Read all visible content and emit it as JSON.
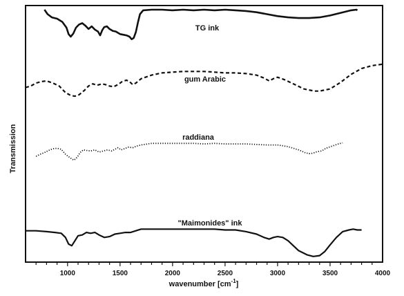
{
  "chart_data": {
    "type": "line",
    "xlabel": "wavenumber [cm",
    "xlabel_sup": "-1",
    "xlabel_close": "]",
    "ylabel": "Transmission",
    "xlim": [
      600,
      4000
    ],
    "x_ticks": [
      1000,
      1500,
      2000,
      2500,
      3000,
      3500,
      4000
    ],
    "x_tick_labels": [
      "1000",
      "1500",
      "2000",
      "2500",
      "3000",
      "3500",
      "4000"
    ],
    "x_reversed": false,
    "y_ticks_shown": false,
    "grid": false,
    "legend": "none (series labelled inline)",
    "series": [
      {
        "name": "TG ink",
        "style": "solid-thick",
        "offset_rank": 1,
        "points": [
          [
            780,
            1.0
          ],
          [
            810,
            0.93
          ],
          [
            850,
            0.88
          ],
          [
            900,
            0.86
          ],
          [
            950,
            0.81
          ],
          [
            990,
            0.72
          ],
          [
            1010,
            0.62
          ],
          [
            1030,
            0.58
          ],
          [
            1055,
            0.63
          ],
          [
            1080,
            0.72
          ],
          [
            1110,
            0.77
          ],
          [
            1140,
            0.79
          ],
          [
            1170,
            0.75
          ],
          [
            1200,
            0.7
          ],
          [
            1230,
            0.74
          ],
          [
            1260,
            0.69
          ],
          [
            1290,
            0.66
          ],
          [
            1310,
            0.6
          ],
          [
            1330,
            0.68
          ],
          [
            1350,
            0.73
          ],
          [
            1375,
            0.74
          ],
          [
            1400,
            0.7
          ],
          [
            1430,
            0.67
          ],
          [
            1460,
            0.66
          ],
          [
            1500,
            0.62
          ],
          [
            1530,
            0.61
          ],
          [
            1560,
            0.6
          ],
          [
            1590,
            0.58
          ],
          [
            1610,
            0.54
          ],
          [
            1630,
            0.56
          ],
          [
            1650,
            0.65
          ],
          [
            1670,
            0.8
          ],
          [
            1690,
            0.93
          ],
          [
            1720,
            0.99
          ],
          [
            1800,
            1.0
          ],
          [
            1900,
            1.0
          ],
          [
            2000,
            0.99
          ],
          [
            2100,
            1.0
          ],
          [
            2200,
            0.99
          ],
          [
            2300,
            1.0
          ],
          [
            2400,
            0.99
          ],
          [
            2500,
            1.0
          ],
          [
            2600,
            0.99
          ],
          [
            2700,
            0.98
          ],
          [
            2800,
            0.96
          ],
          [
            2900,
            0.93
          ],
          [
            3000,
            0.9
          ],
          [
            3100,
            0.88
          ],
          [
            3200,
            0.87
          ],
          [
            3300,
            0.87
          ],
          [
            3400,
            0.88
          ],
          [
            3500,
            0.91
          ],
          [
            3600,
            0.95
          ],
          [
            3700,
            0.99
          ],
          [
            3750,
            1.0
          ],
          [
            3760,
            0.99
          ]
        ]
      },
      {
        "name": "gum Arabic",
        "style": "dashed",
        "offset_rank": 2,
        "points": [
          [
            600,
            0.54
          ],
          [
            650,
            0.56
          ],
          [
            700,
            0.6
          ],
          [
            750,
            0.62
          ],
          [
            800,
            0.63
          ],
          [
            860,
            0.6
          ],
          [
            920,
            0.56
          ],
          [
            980,
            0.47
          ],
          [
            1030,
            0.43
          ],
          [
            1070,
            0.42
          ],
          [
            1110,
            0.44
          ],
          [
            1160,
            0.5
          ],
          [
            1200,
            0.56
          ],
          [
            1240,
            0.59
          ],
          [
            1280,
            0.57
          ],
          [
            1330,
            0.59
          ],
          [
            1360,
            0.58
          ],
          [
            1400,
            0.56
          ],
          [
            1440,
            0.55
          ],
          [
            1480,
            0.58
          ],
          [
            1520,
            0.62
          ],
          [
            1560,
            0.64
          ],
          [
            1590,
            0.62
          ],
          [
            1620,
            0.58
          ],
          [
            1650,
            0.6
          ],
          [
            1700,
            0.66
          ],
          [
            1800,
            0.71
          ],
          [
            1900,
            0.74
          ],
          [
            2000,
            0.75
          ],
          [
            2100,
            0.76
          ],
          [
            2200,
            0.76
          ],
          [
            2300,
            0.76
          ],
          [
            2400,
            0.75
          ],
          [
            2500,
            0.74
          ],
          [
            2600,
            0.74
          ],
          [
            2700,
            0.73
          ],
          [
            2800,
            0.71
          ],
          [
            2870,
            0.67
          ],
          [
            2920,
            0.63
          ],
          [
            2960,
            0.66
          ],
          [
            3000,
            0.68
          ],
          [
            3060,
            0.65
          ],
          [
            3150,
            0.59
          ],
          [
            3250,
            0.52
          ],
          [
            3350,
            0.49
          ],
          [
            3400,
            0.49
          ],
          [
            3500,
            0.52
          ],
          [
            3600,
            0.61
          ],
          [
            3700,
            0.72
          ],
          [
            3800,
            0.8
          ],
          [
            3900,
            0.84
          ],
          [
            4000,
            0.86
          ]
        ]
      },
      {
        "name": "raddiana",
        "style": "dotted",
        "offset_rank": 3,
        "points": [
          [
            700,
            0.26
          ],
          [
            740,
            0.3
          ],
          [
            780,
            0.33
          ],
          [
            820,
            0.37
          ],
          [
            860,
            0.4
          ],
          [
            900,
            0.41
          ],
          [
            940,
            0.39
          ],
          [
            980,
            0.3
          ],
          [
            1020,
            0.24
          ],
          [
            1060,
            0.19
          ],
          [
            1080,
            0.22
          ],
          [
            1100,
            0.27
          ],
          [
            1120,
            0.33
          ],
          [
            1150,
            0.38
          ],
          [
            1180,
            0.37
          ],
          [
            1220,
            0.36
          ],
          [
            1260,
            0.38
          ],
          [
            1300,
            0.34
          ],
          [
            1340,
            0.36
          ],
          [
            1380,
            0.38
          ],
          [
            1420,
            0.36
          ],
          [
            1450,
            0.39
          ],
          [
            1480,
            0.42
          ],
          [
            1510,
            0.38
          ],
          [
            1540,
            0.4
          ],
          [
            1580,
            0.43
          ],
          [
            1620,
            0.42
          ],
          [
            1660,
            0.45
          ],
          [
            1700,
            0.47
          ],
          [
            1800,
            0.5
          ],
          [
            1900,
            0.5
          ],
          [
            2000,
            0.5
          ],
          [
            2100,
            0.5
          ],
          [
            2200,
            0.5
          ],
          [
            2300,
            0.49
          ],
          [
            2400,
            0.5
          ],
          [
            2500,
            0.49
          ],
          [
            2600,
            0.49
          ],
          [
            2700,
            0.49
          ],
          [
            2800,
            0.48
          ],
          [
            2900,
            0.47
          ],
          [
            3000,
            0.47
          ],
          [
            3100,
            0.44
          ],
          [
            3200,
            0.38
          ],
          [
            3260,
            0.33
          ],
          [
            3300,
            0.31
          ],
          [
            3340,
            0.32
          ],
          [
            3380,
            0.35
          ],
          [
            3420,
            0.36
          ],
          [
            3460,
            0.41
          ],
          [
            3520,
            0.45
          ],
          [
            3580,
            0.49
          ],
          [
            3620,
            0.51
          ]
        ]
      },
      {
        "name": "\"Maimonides\" ink",
        "style": "solid",
        "offset_rank": 4,
        "points": [
          [
            600,
            0.2
          ],
          [
            700,
            0.2
          ],
          [
            800,
            0.19
          ],
          [
            880,
            0.18
          ],
          [
            940,
            0.17
          ],
          [
            980,
            0.12
          ],
          [
            1010,
            0.04
          ],
          [
            1040,
            0.02
          ],
          [
            1070,
            0.08
          ],
          [
            1100,
            0.14
          ],
          [
            1140,
            0.15
          ],
          [
            1180,
            0.18
          ],
          [
            1220,
            0.17
          ],
          [
            1260,
            0.18
          ],
          [
            1300,
            0.15
          ],
          [
            1350,
            0.12
          ],
          [
            1400,
            0.13
          ],
          [
            1450,
            0.16
          ],
          [
            1500,
            0.17
          ],
          [
            1550,
            0.18
          ],
          [
            1600,
            0.18
          ],
          [
            1650,
            0.2
          ],
          [
            1700,
            0.22
          ],
          [
            1750,
            0.22
          ],
          [
            1800,
            0.22
          ],
          [
            1900,
            0.22
          ],
          [
            2000,
            0.22
          ],
          [
            2100,
            0.22
          ],
          [
            2200,
            0.22
          ],
          [
            2300,
            0.22
          ],
          [
            2400,
            0.22
          ],
          [
            2500,
            0.21
          ],
          [
            2600,
            0.21
          ],
          [
            2700,
            0.19
          ],
          [
            2800,
            0.16
          ],
          [
            2870,
            0.12
          ],
          [
            2920,
            0.1
          ],
          [
            2960,
            0.12
          ],
          [
            3000,
            0.13
          ],
          [
            3050,
            0.12
          ],
          [
            3100,
            0.08
          ],
          [
            3200,
            -0.04
          ],
          [
            3280,
            -0.09
          ],
          [
            3340,
            -0.11
          ],
          [
            3400,
            -0.1
          ],
          [
            3450,
            -0.05
          ],
          [
            3500,
            0.03
          ],
          [
            3560,
            0.12
          ],
          [
            3620,
            0.19
          ],
          [
            3680,
            0.21
          ],
          [
            3720,
            0.22
          ],
          [
            3760,
            0.21
          ],
          [
            3800,
            0.21
          ]
        ]
      }
    ]
  }
}
